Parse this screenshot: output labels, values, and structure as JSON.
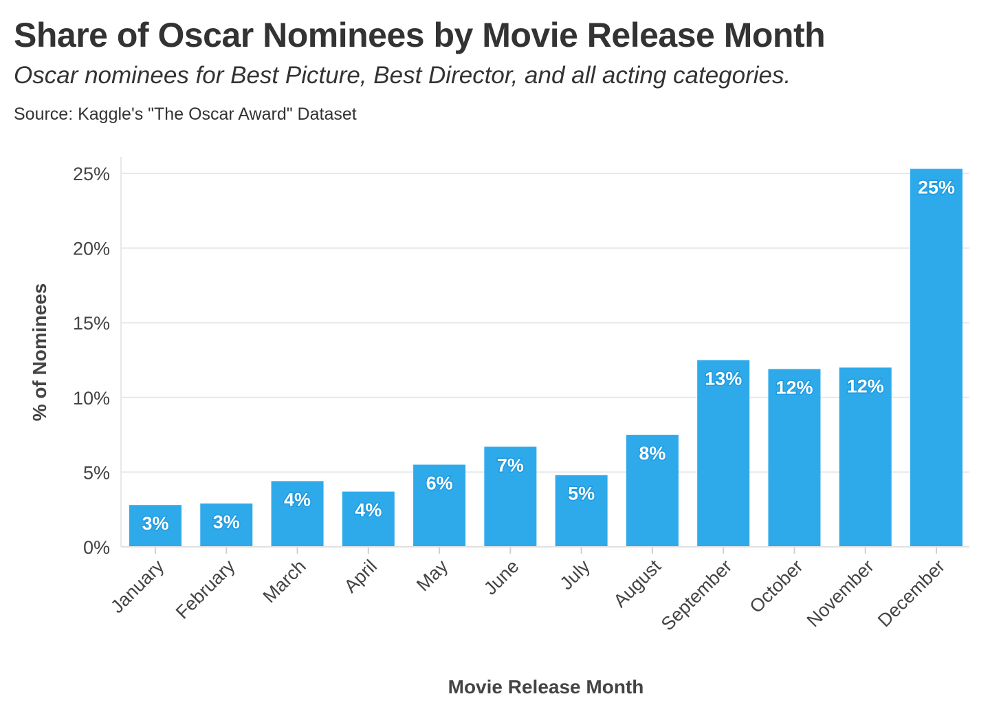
{
  "chart_data": {
    "type": "bar",
    "title": "Share of Oscar Nominees by Movie Release Month",
    "subtitle": "Oscar nominees for Best Picture, Best Director, and all acting categories.",
    "source": "Source: Kaggle's \"The Oscar Award\" Dataset",
    "xlabel": "Movie Release Month",
    "ylabel": "% of Nominees",
    "categories": [
      "January",
      "February",
      "March",
      "April",
      "May",
      "June",
      "July",
      "August",
      "September",
      "October",
      "November",
      "December"
    ],
    "values": [
      2.8,
      2.9,
      4.4,
      3.7,
      5.5,
      6.7,
      4.8,
      7.5,
      12.5,
      11.9,
      12.0,
      25.3
    ],
    "data_labels": [
      "3%",
      "3%",
      "4%",
      "4%",
      "6%",
      "7%",
      "5%",
      "8%",
      "13%",
      "12%",
      "12%",
      "25%"
    ],
    "ylim": [
      0,
      26
    ],
    "yticks": [
      0,
      5,
      10,
      15,
      20,
      25
    ],
    "ytick_labels": [
      "0%",
      "5%",
      "10%",
      "15%",
      "20%",
      "25%"
    ],
    "grid": true,
    "legend": "none",
    "colors": {
      "bar": "#2eaaea",
      "grid": "#e8e8e8",
      "text": "#333333"
    }
  }
}
